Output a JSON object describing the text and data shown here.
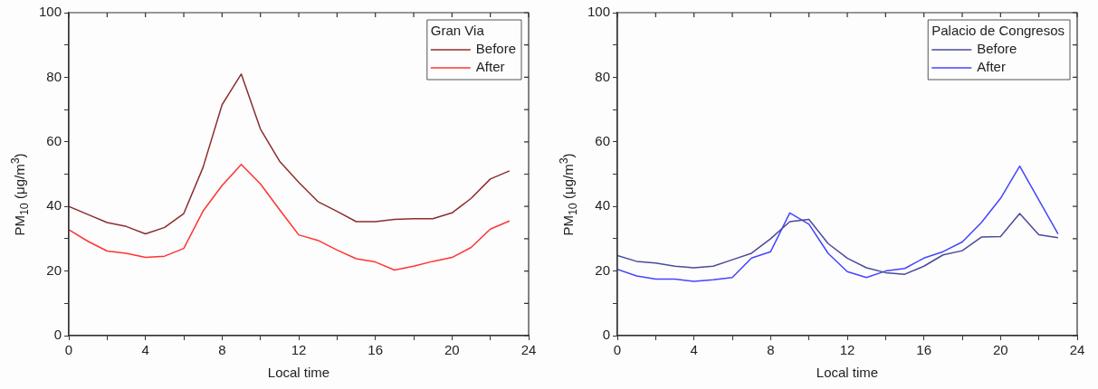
{
  "chart_data": [
    {
      "type": "line",
      "xlabel": "Local time",
      "ylabel": "PM$_{10}$ (μg/m$^{3}$)",
      "legend_title": "Gran Via",
      "legend": "top right",
      "grid": false,
      "marker": "none",
      "line_style": "solid",
      "x": [
        0,
        1,
        2,
        3,
        4,
        5,
        6,
        7,
        8,
        9,
        10,
        11,
        12,
        13,
        14,
        15,
        16,
        17,
        18,
        19,
        20,
        21,
        22,
        23
      ],
      "xlim": [
        0,
        24
      ],
      "xticks": [
        0,
        {
          "value": 2,
          "label": null
        },
        4,
        {
          "value": 6,
          "label": null
        },
        8,
        {
          "value": 10,
          "label": null
        },
        12,
        {
          "value": 14,
          "label": null
        },
        16,
        {
          "value": 18,
          "label": null
        },
        20,
        {
          "value": 22,
          "label": null
        },
        24
      ],
      "ylim": [
        0,
        100
      ],
      "yticks": [
        0,
        {
          "value": 10,
          "label": null
        },
        20,
        {
          "value": 30,
          "label": null
        },
        40,
        {
          "value": 50,
          "label": null
        },
        60,
        {
          "value": 70,
          "label": null
        },
        80,
        {
          "value": 90,
          "label": null
        },
        100
      ],
      "series": [
        {
          "name": "Before",
          "color": "#8b2e2e",
          "values": [
            40,
            37.5,
            35,
            33.8,
            31.5,
            33.5,
            37.8,
            52,
            71.5,
            81,
            64,
            54,
            47.5,
            41.5,
            38.5,
            35.3,
            35.3,
            36,
            36.2,
            36.2,
            38,
            42.5,
            48.5,
            51
          ]
        },
        {
          "name": "After",
          "color": "#ff3333",
          "values": [
            32.8,
            29.2,
            26.2,
            25.5,
            24.2,
            24.6,
            27,
            38.5,
            46.5,
            53,
            47,
            39,
            31.2,
            29.5,
            26.5,
            23.8,
            22.8,
            20.3,
            21.5,
            23,
            24.2,
            27.3,
            33,
            35.5
          ]
        }
      ]
    },
    {
      "type": "line",
      "xlabel": "Local time",
      "ylabel": "PM$_{10}$ (μg/m$^{3}$)",
      "legend_title": "Palacio de Congresos",
      "legend": "top right",
      "grid": false,
      "marker": "none",
      "line_style": "solid",
      "x": [
        0,
        1,
        2,
        3,
        4,
        5,
        6,
        7,
        8,
        9,
        10,
        11,
        12,
        13,
        14,
        15,
        16,
        17,
        18,
        19,
        20,
        21,
        22,
        23
      ],
      "xlim": [
        0,
        24
      ],
      "xticks": [
        0,
        {
          "value": 2,
          "label": null
        },
        4,
        {
          "value": 6,
          "label": null
        },
        8,
        {
          "value": 10,
          "label": null
        },
        12,
        {
          "value": 14,
          "label": null
        },
        16,
        {
          "value": 18,
          "label": null
        },
        20,
        {
          "value": 22,
          "label": null
        },
        24
      ],
      "ylim": [
        0,
        100
      ],
      "yticks": [
        0,
        {
          "value": 10,
          "label": null
        },
        20,
        {
          "value": 30,
          "label": null
        },
        40,
        {
          "value": 50,
          "label": null
        },
        60,
        {
          "value": 70,
          "label": null
        },
        80,
        {
          "value": 90,
          "label": null
        },
        100
      ],
      "series": [
        {
          "name": "Before",
          "color": "#4a4a9a",
          "values": [
            24.8,
            23,
            22.5,
            21.5,
            21,
            21.5,
            23.5,
            25.5,
            30,
            35.3,
            36,
            28.5,
            24,
            21,
            19.5,
            19,
            21.5,
            25,
            26.3,
            30.5,
            30.7,
            37.8,
            31.2,
            30.3
          ]
        },
        {
          "name": "After",
          "color": "#4444ff",
          "values": [
            20.5,
            18.5,
            17.5,
            17.5,
            16.8,
            17.3,
            18,
            24,
            26,
            38,
            34.5,
            25.5,
            19.8,
            18,
            20,
            20.8,
            24,
            26,
            29,
            35,
            42.5,
            52.5,
            42,
            31.5
          ]
        }
      ]
    }
  ]
}
